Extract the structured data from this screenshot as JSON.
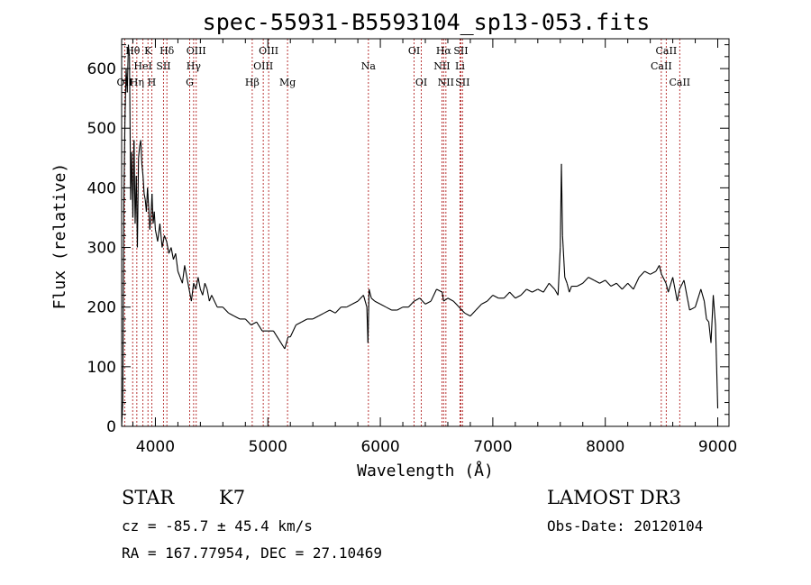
{
  "chart_data": {
    "type": "line",
    "title": "spec-55931-B5593104_sp13-053.fits",
    "xlabel": "Wavelength (Å)",
    "ylabel": "Flux (relative)",
    "xlim": [
      3700,
      9100
    ],
    "ylim": [
      0,
      650
    ],
    "xticks": [
      4000,
      5000,
      6000,
      7000,
      8000,
      9000
    ],
    "yticks": [
      0,
      100,
      200,
      300,
      400,
      500,
      600
    ],
    "series": [
      {
        "name": "flux",
        "x": [
          3700,
          3710,
          3720,
          3730,
          3740,
          3750,
          3760,
          3770,
          3780,
          3790,
          3800,
          3810,
          3820,
          3830,
          3840,
          3850,
          3860,
          3870,
          3880,
          3890,
          3900,
          3910,
          3920,
          3930,
          3940,
          3950,
          3960,
          3970,
          3980,
          3990,
          4000,
          4020,
          4040,
          4060,
          4080,
          4100,
          4120,
          4140,
          4160,
          4180,
          4200,
          4220,
          4240,
          4260,
          4280,
          4300,
          4320,
          4340,
          4360,
          4380,
          4400,
          4420,
          4440,
          4460,
          4480,
          4500,
          4550,
          4600,
          4650,
          4700,
          4750,
          4800,
          4850,
          4900,
          4950,
          5000,
          5050,
          5100,
          5150,
          5180,
          5200,
          5250,
          5300,
          5350,
          5400,
          5450,
          5500,
          5550,
          5600,
          5650,
          5700,
          5750,
          5800,
          5850,
          5880,
          5890,
          5900,
          5920,
          5950,
          6000,
          6050,
          6100,
          6150,
          6200,
          6250,
          6300,
          6350,
          6400,
          6450,
          6500,
          6550,
          6563,
          6600,
          6650,
          6700,
          6750,
          6800,
          6850,
          6900,
          6950,
          7000,
          7050,
          7100,
          7150,
          7200,
          7250,
          7300,
          7350,
          7400,
          7450,
          7500,
          7550,
          7580,
          7600,
          7610,
          7620,
          7640,
          7660,
          7680,
          7700,
          7750,
          7800,
          7850,
          7900,
          7950,
          8000,
          8050,
          8100,
          8150,
          8200,
          8250,
          8300,
          8350,
          8400,
          8450,
          8480,
          8500,
          8540,
          8560,
          8600,
          8640,
          8660,
          8700,
          8750,
          8800,
          8850,
          8880,
          8900,
          8920,
          8940,
          8960,
          8980,
          9000
        ],
        "values": [
          0,
          40,
          380,
          520,
          600,
          560,
          640,
          620,
          380,
          460,
          350,
          480,
          340,
          420,
          300,
          450,
          470,
          480,
          440,
          420,
          390,
          380,
          360,
          400,
          370,
          330,
          350,
          390,
          340,
          360,
          330,
          310,
          340,
          300,
          320,
          310,
          290,
          300,
          280,
          290,
          260,
          250,
          240,
          270,
          250,
          230,
          210,
          240,
          230,
          250,
          230,
          220,
          240,
          230,
          210,
          220,
          200,
          200,
          190,
          185,
          180,
          180,
          170,
          175,
          160,
          160,
          160,
          145,
          130,
          150,
          150,
          170,
          175,
          180,
          180,
          185,
          190,
          195,
          190,
          200,
          200,
          205,
          210,
          220,
          200,
          140,
          230,
          215,
          210,
          205,
          200,
          195,
          195,
          200,
          200,
          210,
          215,
          205,
          210,
          230,
          225,
          210,
          215,
          210,
          200,
          190,
          185,
          195,
          205,
          210,
          220,
          215,
          215,
          225,
          215,
          220,
          230,
          225,
          230,
          225,
          240,
          230,
          220,
          300,
          440,
          320,
          250,
          240,
          225,
          235,
          235,
          240,
          250,
          245,
          240,
          245,
          235,
          240,
          230,
          240,
          230,
          250,
          260,
          255,
          260,
          270,
          255,
          240,
          225,
          250,
          210,
          230,
          245,
          195,
          200,
          230,
          210,
          180,
          175,
          140,
          220,
          170,
          30
        ]
      }
    ],
    "emission_lines": [
      {
        "label": "OII",
        "wavelength": 3727,
        "row": 3
      },
      {
        "label": "Hθ",
        "wavelength": 3798,
        "row": 1
      },
      {
        "label": "Hη",
        "wavelength": 3835,
        "row": 3
      },
      {
        "label": "HeI",
        "wavelength": 3889,
        "row": 2
      },
      {
        "label": "K",
        "wavelength": 3934,
        "row": 1
      },
      {
        "label": "H",
        "wavelength": 3968,
        "row": 3
      },
      {
        "label": "SII",
        "wavelength": 4072,
        "row": 2
      },
      {
        "label": "Hδ",
        "wavelength": 4102,
        "row": 1
      },
      {
        "label": "G",
        "wavelength": 4305,
        "row": 3
      },
      {
        "label": "OIII",
        "wavelength": 4363,
        "row": 1
      },
      {
        "label": "Hγ",
        "wavelength": 4340,
        "row": 2
      },
      {
        "label": "Hβ",
        "wavelength": 4861,
        "row": 3
      },
      {
        "label": "OIII",
        "wavelength": 4959,
        "row": 2
      },
      {
        "label": "OIII",
        "wavelength": 5007,
        "row": 1
      },
      {
        "label": "Mg",
        "wavelength": 5175,
        "row": 3
      },
      {
        "label": "Na",
        "wavelength": 5894,
        "row": 2
      },
      {
        "label": "OI",
        "wavelength": 6300,
        "row": 1
      },
      {
        "label": "OI",
        "wavelength": 6364,
        "row": 3
      },
      {
        "label": "NII",
        "wavelength": 6548,
        "row": 2
      },
      {
        "label": "Hα",
        "wavelength": 6563,
        "row": 1
      },
      {
        "label": "NII",
        "wavelength": 6583,
        "row": 3
      },
      {
        "label": "SII",
        "wavelength": 6716,
        "row": 1
      },
      {
        "label": "Li",
        "wavelength": 6708,
        "row": 2
      },
      {
        "label": "SII",
        "wavelength": 6731,
        "row": 3
      },
      {
        "label": "CaII",
        "wavelength": 8498,
        "row": 2
      },
      {
        "label": "CaII",
        "wavelength": 8542,
        "row": 1
      },
      {
        "label": "CaII",
        "wavelength": 8662,
        "row": 3
      }
    ]
  },
  "info": {
    "class_label": "STAR",
    "subclass": "K7",
    "survey": "LAMOST DR3",
    "cz": "cz = -85.7 ± 45.4 km/s",
    "obs_date": "Obs-Date: 20120104",
    "coords": "RA = 167.77954, DEC =  27.10469"
  }
}
